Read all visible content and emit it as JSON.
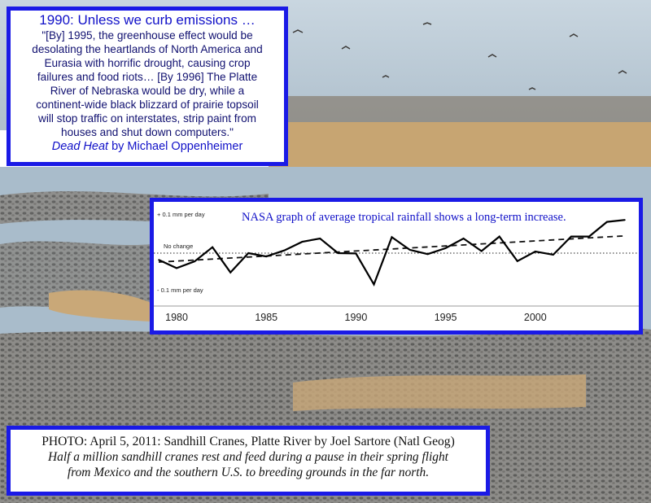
{
  "colors": {
    "box_border": "#1a1ae6",
    "sky": "#b9c9d6",
    "water": "#a9bccb",
    "field": "#c7a572",
    "crane_flock": "#6d6a66"
  },
  "quote": {
    "title": "1990: Unless we curb emissions …",
    "lines": [
      "\"[By] 1995, the greenhouse effect would be",
      "desolating the heartlands of North America and",
      "Eurasia with horrific drought, causing crop",
      "failures and food riots…  [By 1996] The Platte",
      "River of Nebraska would be dry, while a",
      "continent-wide black blizzard of prairie topsoil",
      "will stop traffic on interstates, strip paint from",
      "houses and shut down computers.\""
    ],
    "source_title": "Dead Heat",
    "source_author": " by Michael Oppenheimer"
  },
  "chart_data": {
    "type": "line",
    "title": "NASA graph of average tropical rainfall shows a long-term increase.",
    "y_labels": {
      "top": "+ 0.1 mm per day",
      "middle": "No change",
      "bottom": "- 0.1 mm per day"
    },
    "ylim": [
      -0.12,
      0.12
    ],
    "xlim": [
      1979,
      2005.5
    ],
    "x_ticks": [
      1980,
      1985,
      1990,
      1995,
      2000
    ],
    "x": [
      1979,
      1980,
      1981,
      1982,
      1983,
      1984,
      1985,
      1986,
      1987,
      1988,
      1989,
      1990,
      1991,
      1992,
      1993,
      1994,
      1995,
      1996,
      1997,
      1998,
      1999,
      2000,
      2001,
      2002,
      2003,
      2004,
      2005
    ],
    "values": [
      -0.02,
      -0.045,
      -0.025,
      0.018,
      -0.058,
      0.0,
      -0.01,
      0.008,
      0.034,
      0.044,
      0.0,
      -0.001,
      -0.094,
      0.048,
      0.01,
      -0.003,
      0.015,
      0.044,
      0.006,
      0.05,
      -0.024,
      0.005,
      -0.005,
      0.05,
      0.05,
      0.094,
      0.1
    ],
    "trend": {
      "x": [
        1979,
        2005
      ],
      "values": [
        -0.027,
        0.052
      ]
    },
    "grid": false
  },
  "caption": {
    "line1": "PHOTO: April 5, 2011: Sandhill Cranes, Platte River by Joel Sartore (Natl Geog)",
    "line2": "Half a million sandhill cranes rest and feed during a pause in their spring flight",
    "line3": "from Mexico and the southern U.S. to breeding grounds in the far north."
  }
}
